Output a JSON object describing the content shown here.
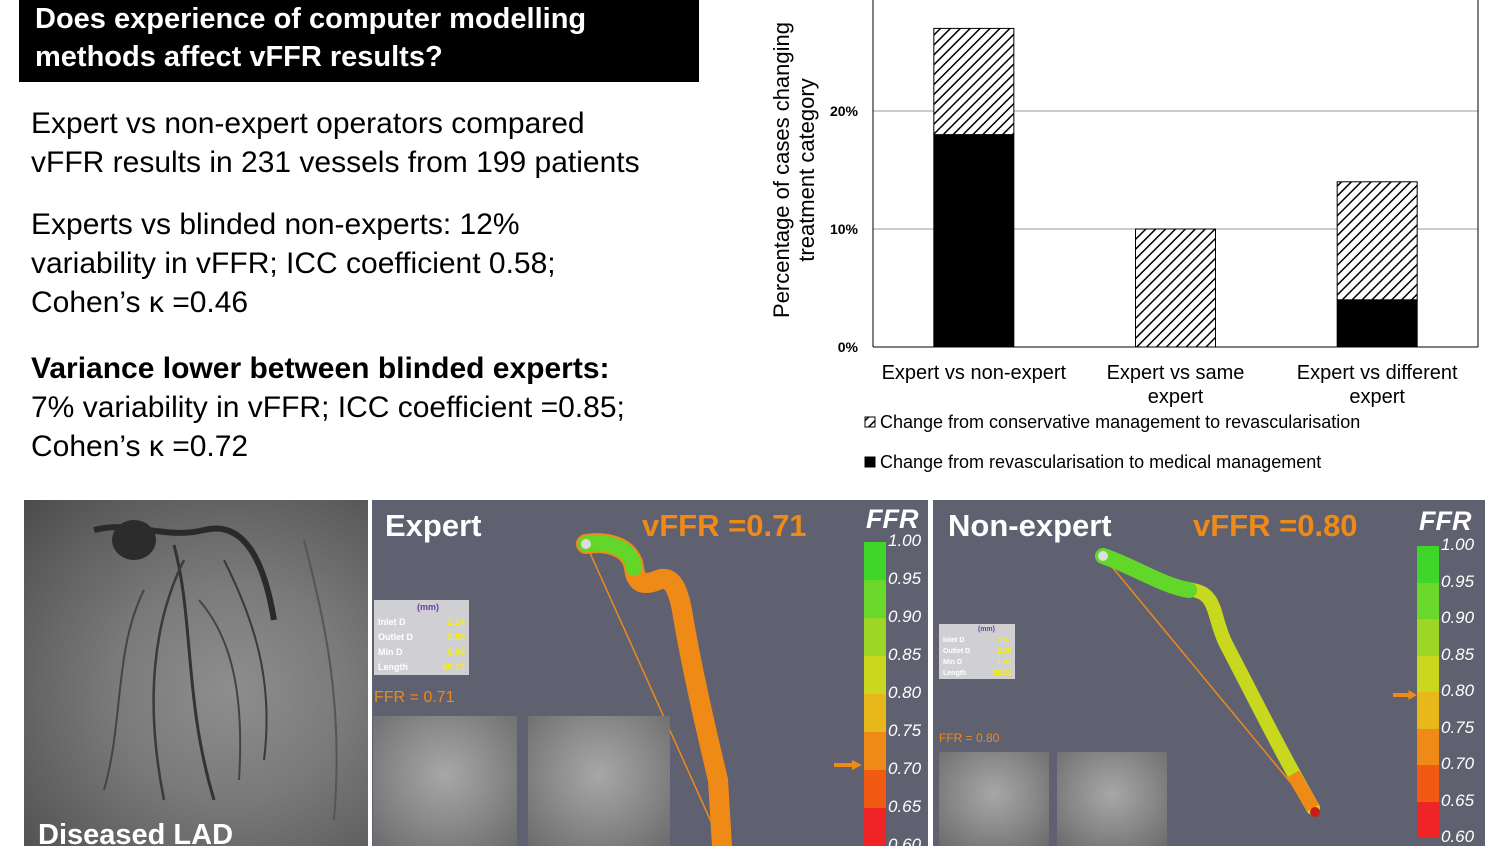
{
  "title": {
    "line1": "Does experience of computer modelling",
    "line2": "methods affect vFFR results?"
  },
  "intro": {
    "line1": "Expert vs non-expert operators compared",
    "line2": "vFFR results in 231 vessels from 199 patients"
  },
  "finding1": {
    "line1": "Experts vs blinded non-experts: 12%",
    "line2": "variability in vFFR; ICC coefficient 0.58;",
    "line3": "Cohen’s κ =0.46"
  },
  "finding2": {
    "heading": "Variance lower between blinded experts:",
    "line1": "7% variability in vFFR; ICC coefficient =0.85;",
    "line2": "Cohen’s κ =0.72"
  },
  "chart_data": {
    "type": "bar",
    "stacked": true,
    "ylabel_line1": "Percentage of cases changing",
    "ylabel_line2": "treatment category",
    "ylim": [
      0,
      30
    ],
    "yticks": [
      "0%",
      "10%",
      "20%"
    ],
    "ytick_values": [
      0,
      10,
      20
    ],
    "grid": true,
    "legend_position": "bottom",
    "categories": [
      [
        "Expert vs non-expert"
      ],
      [
        "Expert vs same",
        "expert"
      ],
      [
        "Expert vs different",
        "expert"
      ]
    ],
    "series": [
      {
        "name": "Change from revascularisation to medical management",
        "values": [
          18,
          0,
          4
        ],
        "fill": "solid"
      },
      {
        "name": "Change from conservative management to revascularisation",
        "values": [
          9,
          10,
          10
        ],
        "fill": "hatched"
      }
    ],
    "legend": [
      {
        "label": "Change from conservative management to revascularisation",
        "fill": "hatched"
      },
      {
        "label": "Change from revascularisation to medical management",
        "fill": "solid"
      }
    ]
  },
  "angio": {
    "label": "Diseased LAD"
  },
  "expert": {
    "title": "Expert",
    "vffr": "vFFR =0.71",
    "ffr_small": "FFR = 0.71",
    "scale_label": "FFR",
    "ticks": [
      "1.00",
      "0.95",
      "0.90",
      "0.85",
      "0.80",
      "0.75",
      "0.70",
      "0.65",
      "0.60"
    ],
    "indicator_value": 0.71,
    "table": {
      "unit": "(mm)",
      "rows": [
        {
          "k": "Inlet D",
          "v": "2.14"
        },
        {
          "k": "Outlet D",
          "v": "2.09"
        },
        {
          "k": "Min D",
          "v": "0.99"
        },
        {
          "k": "Length",
          "v": "46.72"
        }
      ]
    }
  },
  "nonexpert": {
    "title": "Non-expert",
    "vffr": "vFFR =0.80",
    "ffr_small": "FFR = 0.80",
    "scale_label": "FFR",
    "ticks": [
      "1.00",
      "0.95",
      "0.90",
      "0.85",
      "0.80",
      "0.75",
      "0.70",
      "0.65",
      "0.60"
    ],
    "indicator_value": 0.8,
    "table": {
      "unit": "(mm)",
      "rows": [
        {
          "k": "Inlet D",
          "v": "2.37"
        },
        {
          "k": "Outlet D",
          "v": "2.36"
        },
        {
          "k": "Min D",
          "v": "1.03"
        },
        {
          "k": "Length",
          "v": "56.22"
        }
      ]
    }
  },
  "colors": {
    "vffr_text": "#f08a16",
    "panel_bg": "#5f6171",
    "table_value": "#f7f000"
  }
}
